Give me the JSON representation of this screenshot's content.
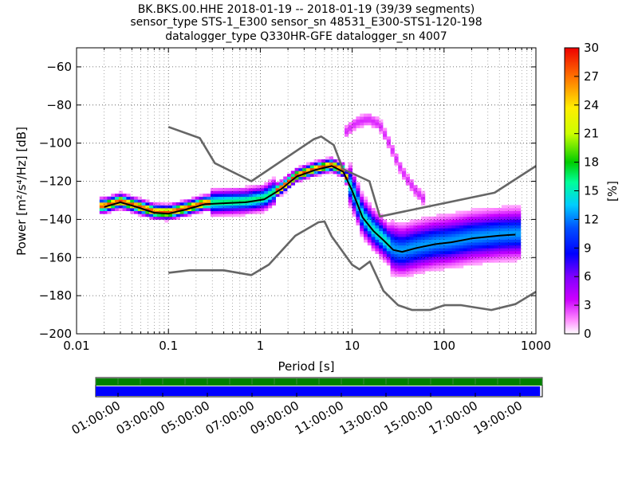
{
  "title": {
    "line1": "BK.BKS.00.HHE   2018-01-19 -- 2018-01-19  (39/39 segments)",
    "line2": "sensor_type STS-1_E300 sensor_sn 48531_E300-STS1-120-198",
    "line3": "datalogger_type Q330HR-GFE datalogger_sn 4007"
  },
  "chart_data": [
    {
      "type": "heatmap",
      "xlabel": "Period [s]",
      "ylabel": "Power [m²/s⁴/Hz] [dB]",
      "x_scale": "log",
      "xlim": [
        0.01,
        1000
      ],
      "ylim": [
        -200,
        -50
      ],
      "x_ticks": [
        {
          "v": 0.01,
          "label": "0.01"
        },
        {
          "v": 0.1,
          "label": "0.1"
        },
        {
          "v": 1,
          "label": "1"
        },
        {
          "v": 10,
          "label": "10"
        },
        {
          "v": 100,
          "label": "100"
        },
        {
          "v": 1000,
          "label": "1000"
        }
      ],
      "y_ticks": [
        {
          "v": -60,
          "label": "−60"
        },
        {
          "v": -80,
          "label": "−80"
        },
        {
          "v": -100,
          "label": "−100"
        },
        {
          "v": -120,
          "label": "−120"
        },
        {
          "v": -140,
          "label": "−140"
        },
        {
          "v": -160,
          "label": "−160"
        },
        {
          "v": -180,
          "label": "−180"
        },
        {
          "v": -200,
          "label": "−200"
        }
      ],
      "grid": true,
      "colorbar": {
        "label": "[%]",
        "range": [
          0,
          30
        ],
        "ticks": [
          0,
          3,
          6,
          9,
          12,
          15,
          18,
          21,
          24,
          27,
          30
        ],
        "colormap": "pqlx"
      },
      "series": [
        {
          "role": "noise-model-high",
          "color": "#666666",
          "x": [
            0.1,
            0.22,
            0.32,
            0.8,
            3.8,
            4.6,
            6.3,
            7.9,
            15.4,
            20,
            354.8,
            1000
          ],
          "y": [
            -91.5,
            -97.4,
            -110.5,
            -120,
            -98,
            -96.5,
            -101,
            -113.5,
            -120,
            -138.5,
            -126,
            -112
          ]
        },
        {
          "role": "noise-model-low",
          "color": "#666666",
          "x": [
            0.1,
            0.17,
            0.4,
            0.8,
            1.24,
            2.4,
            4.3,
            5,
            6,
            10,
            12,
            15.6,
            21.9,
            31.6,
            45,
            70,
            101,
            154,
            328,
            600,
            1000
          ],
          "y": [
            -168,
            -166.7,
            -166.7,
            -169.2,
            -163.7,
            -148.6,
            -141.5,
            -141.1,
            -149,
            -163.8,
            -166.2,
            -162.1,
            -177.5,
            -185,
            -187.5,
            -187.5,
            -185,
            -185,
            -187.5,
            -184.4,
            -178
          ]
        },
        {
          "role": "mean-psd",
          "color": "#000000",
          "x": [
            0.02,
            0.03,
            0.045,
            0.07,
            0.1,
            0.15,
            0.25,
            0.4,
            0.7,
            1.1,
            1.7,
            2.5,
            4,
            6,
            8,
            10,
            13,
            17,
            22,
            28,
            35,
            50,
            80,
            120,
            200,
            400,
            600
          ],
          "y": [
            -133.5,
            -131,
            -133.5,
            -136.5,
            -137,
            -135,
            -132,
            -131.5,
            -131,
            -129.5,
            -124,
            -117.5,
            -114,
            -112,
            -115,
            -125,
            -139,
            -146,
            -151,
            -156,
            -157,
            -155,
            -153,
            -152,
            -150,
            -148.5,
            -148
          ]
        }
      ],
      "density": {
        "trend": {
          "x": [
            0.02,
            0.03,
            0.045,
            0.07,
            0.1,
            0.15,
            0.25,
            0.4,
            0.7,
            1.1,
            1.7,
            2.5,
            4,
            6,
            8,
            10,
            13,
            17,
            22,
            28,
            35,
            50,
            80,
            120,
            200,
            400,
            600
          ],
          "y": [
            -133.5,
            -131,
            -133.5,
            -136.5,
            -137,
            -135,
            -132,
            -131.5,
            -131,
            -129.5,
            -124,
            -117.5,
            -114,
            -112,
            -115,
            -125,
            -139,
            -146,
            -151,
            -156,
            -157,
            -155,
            -153,
            -152,
            -150,
            -148.5,
            -148
          ]
        },
        "secondary": {
          "x": [
            8,
            11,
            15,
            20,
            26,
            32,
            40,
            50,
            60
          ],
          "y": [
            -96,
            -90,
            -88,
            -91,
            -102,
            -112,
            -120,
            -126,
            -130
          ]
        }
      }
    },
    {
      "type": "timeline",
      "x_ticks": [
        "01:00:00",
        "03:00:00",
        "05:00:00",
        "07:00:00",
        "09:00:00",
        "11:00:00",
        "13:00:00",
        "15:00:00",
        "17:00:00",
        "19:00:00"
      ],
      "bars": [
        {
          "name": "data-availability",
          "color": "#008000",
          "from_hour": 0.0,
          "to_hour": 20.0
        },
        {
          "name": "psd-coverage",
          "color": "#0000ff",
          "from_hour": 0.0,
          "to_hour": 19.9
        }
      ]
    }
  ]
}
